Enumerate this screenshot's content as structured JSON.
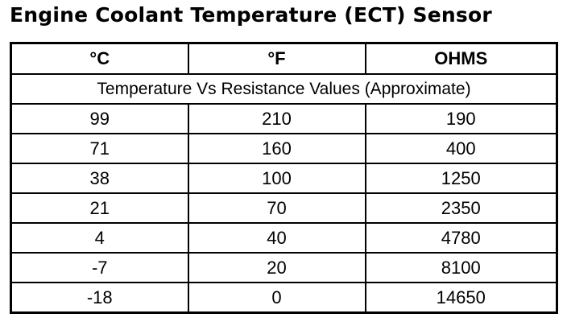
{
  "header": {
    "title": "Engine Coolant Temperature (ECT) Sensor"
  },
  "table": {
    "columns": [
      "°C",
      "°F",
      "OHMS"
    ],
    "subtitle": "Temperature Vs Resistance Values (Approximate)",
    "rows": [
      [
        99,
        210,
        190
      ],
      [
        71,
        160,
        400
      ],
      [
        38,
        100,
        1250
      ],
      [
        21,
        70,
        2350
      ],
      [
        4,
        40,
        4780
      ],
      [
        -7,
        20,
        8100
      ],
      [
        -18,
        0,
        14650
      ]
    ]
  }
}
